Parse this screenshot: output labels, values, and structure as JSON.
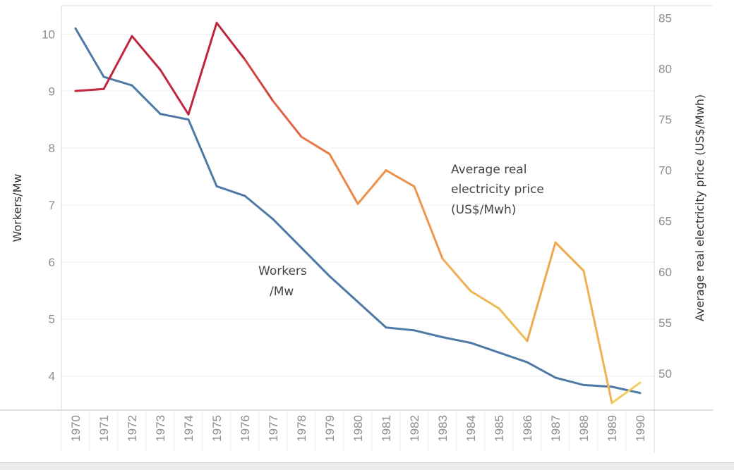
{
  "chart_data": {
    "type": "line",
    "x": [
      "1970",
      "1971",
      "1972",
      "1973",
      "1974",
      "1975",
      "1976",
      "1977",
      "1978",
      "1979",
      "1980",
      "1981",
      "1982",
      "1983",
      "1984",
      "1985",
      "1986",
      "1987",
      "1988",
      "1989",
      "1990"
    ],
    "series": [
      {
        "name": "Workers/Mw",
        "axis": "left",
        "color": "#4e79a7",
        "values": [
          10.1,
          9.25,
          9.1,
          8.6,
          8.5,
          7.33,
          7.16,
          6.75,
          6.25,
          5.75,
          5.3,
          4.85,
          4.8,
          4.68,
          4.58,
          4.41,
          4.24,
          3.97,
          3.84,
          3.81,
          3.7
        ]
      },
      {
        "name": "Average real electricity price (US$/Mwh)",
        "axis": "right",
        "colors_by_value": "red-to-yellow gradient (#c0283b high → #f2d162 low)",
        "values": [
          77.8,
          78.0,
          83.2,
          79.9,
          75.5,
          84.5,
          80.9,
          76.8,
          73.3,
          71.6,
          66.7,
          70.0,
          68.4,
          61.3,
          58.1,
          56.4,
          53.2,
          62.9,
          60.1,
          47.1,
          49.1
        ]
      }
    ],
    "ylabel_left": "Workers/Mw",
    "ylabel_right": "Average real electricity price (US$/Mwh)",
    "ylim_left": [
      3.4,
      10.5
    ],
    "ylim_right": [
      46.4,
      86.2
    ],
    "yticks_left": [
      "4",
      "5",
      "6",
      "7",
      "8",
      "9",
      "10"
    ],
    "yticks_right": [
      "50",
      "55",
      "60",
      "65",
      "70",
      "75",
      "80",
      "85"
    ],
    "annotations": {
      "price_line1": "Average real",
      "price_line2": "electricity price",
      "price_line3": "(US$/Mwh)",
      "workers_line1": "Workers",
      "workers_line2": "/Mw"
    },
    "grid": true
  }
}
